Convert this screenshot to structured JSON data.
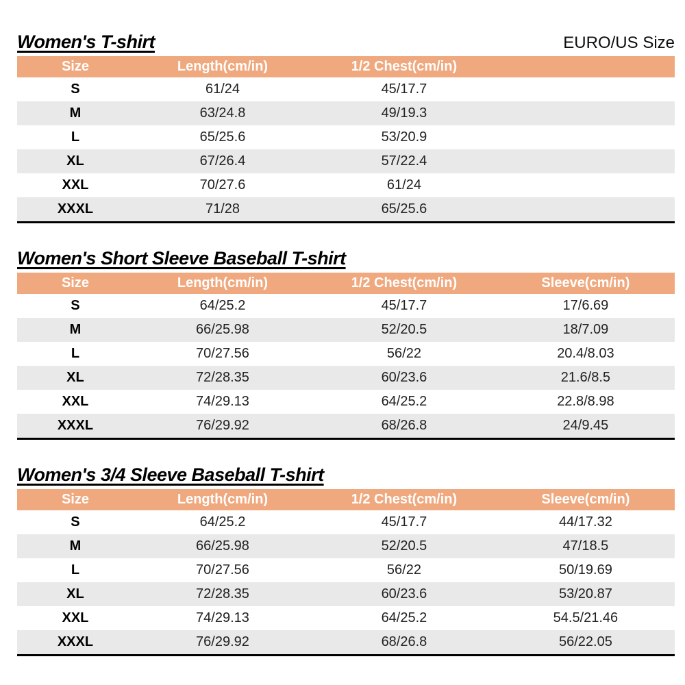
{
  "page": {
    "corner_label": "EURO/US Size"
  },
  "colors": {
    "header_bg": "#F0A87E",
    "header_text": "#FFFFFF",
    "stripe_bg": "#E9E9E9",
    "border": "#000000"
  },
  "tables": [
    {
      "title": "Women's T-shirt",
      "columns": [
        "Size",
        "Length(cm/in)",
        "1/2 Chest(cm/in)"
      ],
      "rows": [
        [
          "S",
          "61/24",
          "45/17.7"
        ],
        [
          "M",
          "63/24.8",
          "49/19.3"
        ],
        [
          "L",
          "65/25.6",
          "53/20.9"
        ],
        [
          "XL",
          "67/26.4",
          "57/22.4"
        ],
        [
          "XXL",
          "70/27.6",
          "61/24"
        ],
        [
          "XXXL",
          "71/28",
          "65/25.6"
        ]
      ]
    },
    {
      "title": "Women's Short Sleeve Baseball T-shirt",
      "columns": [
        "Size",
        "Length(cm/in)",
        "1/2 Chest(cm/in)",
        "Sleeve(cm/in)"
      ],
      "rows": [
        [
          "S",
          "64/25.2",
          "45/17.7",
          "17/6.69"
        ],
        [
          "M",
          "66/25.98",
          "52/20.5",
          "18/7.09"
        ],
        [
          "L",
          "70/27.56",
          "56/22",
          "20.4/8.03"
        ],
        [
          "XL",
          "72/28.35",
          "60/23.6",
          "21.6/8.5"
        ],
        [
          "XXL",
          "74/29.13",
          "64/25.2",
          "22.8/8.98"
        ],
        [
          "XXXL",
          "76/29.92",
          "68/26.8",
          "24/9.45"
        ]
      ]
    },
    {
      "title": "Women's 3/4 Sleeve Baseball T-shirt",
      "columns": [
        "Size",
        "Length(cm/in)",
        "1/2 Chest(cm/in)",
        "Sleeve(cm/in)"
      ],
      "rows": [
        [
          "S",
          "64/25.2",
          "45/17.7",
          "44/17.32"
        ],
        [
          "M",
          "66/25.98",
          "52/20.5",
          "47/18.5"
        ],
        [
          "L",
          "70/27.56",
          "56/22",
          "50/19.69"
        ],
        [
          "XL",
          "72/28.35",
          "60/23.6",
          "53/20.87"
        ],
        [
          "XXL",
          "74/29.13",
          "64/25.2",
          "54.5/21.46"
        ],
        [
          "XXXL",
          "76/29.92",
          "68/26.8",
          "56/22.05"
        ]
      ]
    }
  ]
}
